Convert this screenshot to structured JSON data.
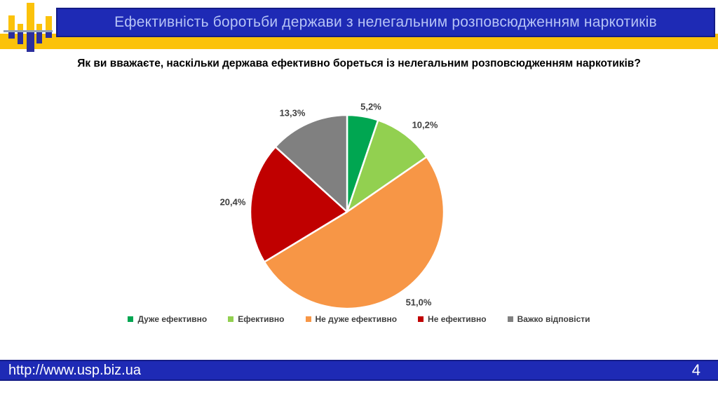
{
  "header": {
    "title": "Ефективність боротьби держави з нелегальним розповсюдженням наркотиків"
  },
  "question": "Як ви вважаєте, наскільки держава ефективно бореться із нелегальним розповсюдженням наркотиків?",
  "chart_data": {
    "type": "pie",
    "title": "Як ви вважаєте, наскільки держава ефективно бореться із нелегальним розповсюдженням наркотиків?",
    "categories": [
      "Дуже ефективно",
      "Ефективно",
      "Не дуже ефективно",
      "Не ефективно",
      "Важко відповісти"
    ],
    "values": [
      5.2,
      10.2,
      51.0,
      20.4,
      13.3
    ],
    "labels": [
      "5,2%",
      "10,2%",
      "51,0%",
      "20,4%",
      "13,3%"
    ],
    "colors": [
      "#00A651",
      "#92D050",
      "#F79646",
      "#C00000",
      "#808080"
    ],
    "slice_border_color": "#FFFFFF",
    "start_angle": "12-oclock",
    "direction": "clockwise",
    "legend_position": "bottom"
  },
  "footer": {
    "url": "http://www.usp.biz.ua",
    "page_number": "4"
  },
  "theme": {
    "header_blue": "#1E2AB5",
    "header_border": "#141C86",
    "header_text": "#B6C3F6",
    "band_yellow": "#FBC20A",
    "logo_blue": "#2B2F9E",
    "logo_line_gray": "#90A0B4",
    "label_text": "#3F3F3F",
    "footer_text": "#FFFFFF"
  }
}
